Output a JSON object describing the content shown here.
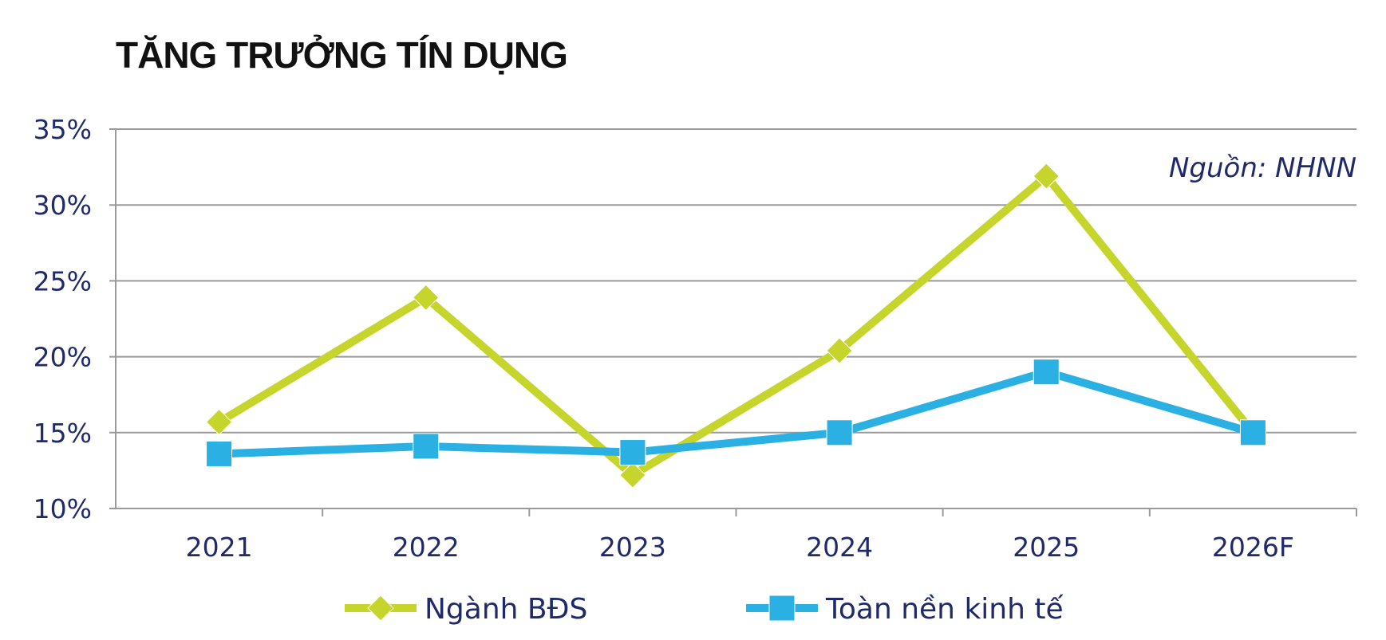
{
  "chart_data": {
    "type": "line",
    "title": "TĂNG TRƯỞNG TÍN DỤNG",
    "source_note": "Nguồn: NHNN",
    "categories": [
      "2021",
      "2022",
      "2023",
      "2024",
      "2025",
      "2026F"
    ],
    "y_tick_labels": [
      "35%",
      "30%",
      "25%",
      "20%",
      "15%",
      "10%"
    ],
    "ylim": [
      10,
      35
    ],
    "y_ticks": [
      35,
      30,
      25,
      20,
      15,
      10
    ],
    "grid": true,
    "legend_position": "bottom",
    "series": [
      {
        "name": "Ngành BĐS",
        "values": [
          15.7,
          23.9,
          12.2,
          20.4,
          31.9,
          15.0
        ],
        "color": "#c5d52c",
        "marker": "diamond"
      },
      {
        "name": "Toàn nền kinh tế",
        "values": [
          13.6,
          14.1,
          13.7,
          15.0,
          19.0,
          15.0
        ],
        "color": "#2bb0e3",
        "marker": "square"
      }
    ]
  }
}
